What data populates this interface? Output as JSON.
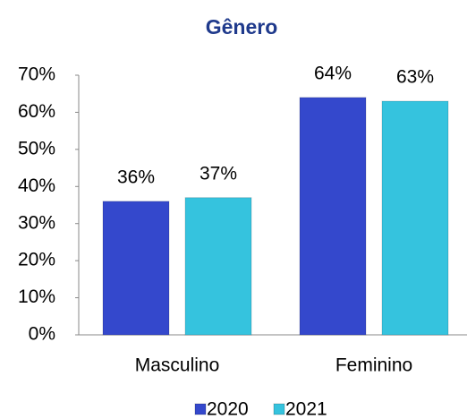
{
  "chart_data": {
    "type": "bar",
    "title": "Gênero",
    "categories": [
      "Masculino",
      "Feminino"
    ],
    "series": [
      {
        "name": "2020",
        "color": "#3448cc",
        "values": [
          36,
          64
        ],
        "value_labels": [
          "36%",
          "64%"
        ]
      },
      {
        "name": "2021",
        "color": "#35c3de",
        "values": [
          37,
          63
        ],
        "value_labels": [
          "37%",
          "63%"
        ]
      }
    ],
    "ylim": [
      0,
      70
    ],
    "yticks": [
      {
        "value": 0,
        "label": "0%"
      },
      {
        "value": 10,
        "label": "10%"
      },
      {
        "value": 20,
        "label": "20%"
      },
      {
        "value": 30,
        "label": "30%"
      },
      {
        "value": 40,
        "label": "40%"
      },
      {
        "value": 50,
        "label": "50%"
      },
      {
        "value": 60,
        "label": "60%"
      },
      {
        "value": 70,
        "label": "70%"
      }
    ],
    "grid": false,
    "legend": "bottom"
  }
}
